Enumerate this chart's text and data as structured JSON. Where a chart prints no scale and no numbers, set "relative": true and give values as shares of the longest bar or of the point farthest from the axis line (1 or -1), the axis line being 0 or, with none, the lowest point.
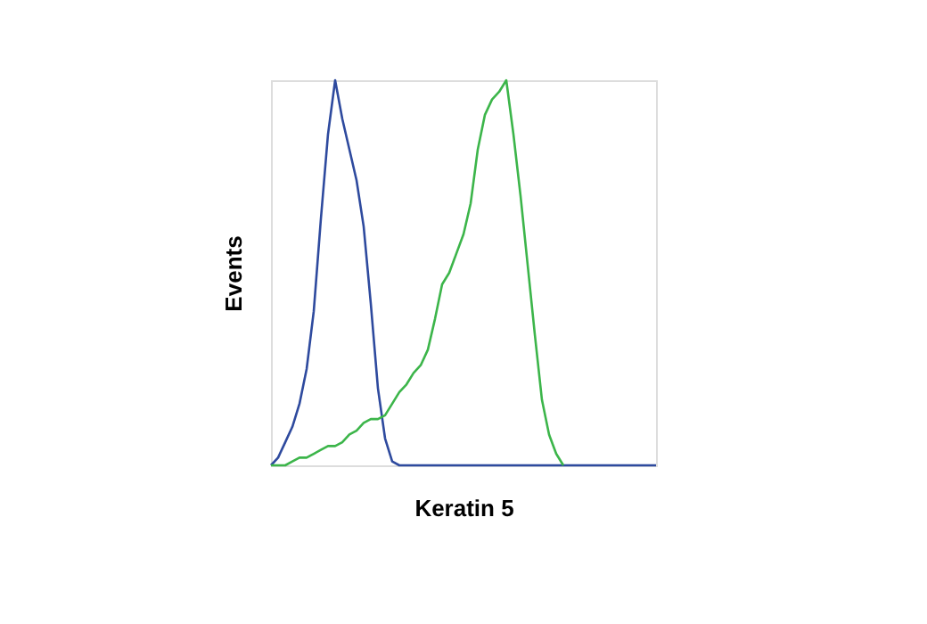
{
  "chart_data": {
    "type": "line",
    "xlabel": "Keratin 5",
    "ylabel": "Events",
    "relative": true,
    "grid": false,
    "marker": "none",
    "line_style": "solid",
    "categories": [
      null,
      null,
      null,
      null,
      null,
      null,
      null,
      null,
      null,
      null,
      null,
      null,
      null,
      null,
      null,
      null,
      null,
      null,
      null,
      null,
      null,
      null,
      null,
      null,
      null,
      null,
      null,
      null,
      null,
      null,
      null,
      null,
      null,
      null,
      null,
      null,
      null,
      null,
      null,
      null,
      null,
      null,
      null,
      null,
      null,
      null,
      null,
      null,
      null,
      null,
      null,
      null,
      null,
      null,
      null
    ],
    "series": [
      {
        "color": "#2e4a9e",
        "values": [
          0,
          0.02,
          0.06,
          0.1,
          0.16,
          0.25,
          0.4,
          0.64,
          0.86,
          1.0,
          0.9,
          0.82,
          0.74,
          0.62,
          0.42,
          0.2,
          0.07,
          0.01,
          0,
          0,
          0,
          0,
          0,
          0,
          0,
          0,
          0,
          0,
          0,
          0,
          0,
          0,
          0,
          0,
          0,
          0,
          0,
          0,
          0,
          0,
          0,
          0,
          0,
          0,
          0,
          0,
          0,
          0,
          0,
          0,
          0,
          0,
          0,
          0,
          0
        ]
      },
      {
        "color": "#3cb54a",
        "values": [
          0,
          0,
          0,
          0.01,
          0.02,
          0.02,
          0.03,
          0.04,
          0.05,
          0.05,
          0.06,
          0.08,
          0.09,
          0.11,
          0.12,
          0.12,
          0.13,
          0.16,
          0.19,
          0.21,
          0.24,
          0.26,
          0.3,
          0.38,
          0.47,
          0.5,
          0.55,
          0.6,
          0.68,
          0.82,
          0.91,
          0.95,
          0.97,
          1.0,
          0.86,
          0.7,
          0.52,
          0.34,
          0.17,
          0.08,
          0.03,
          0,
          null,
          null,
          null,
          null,
          null,
          null,
          null,
          null,
          null,
          null,
          null,
          null,
          null
        ]
      }
    ]
  }
}
